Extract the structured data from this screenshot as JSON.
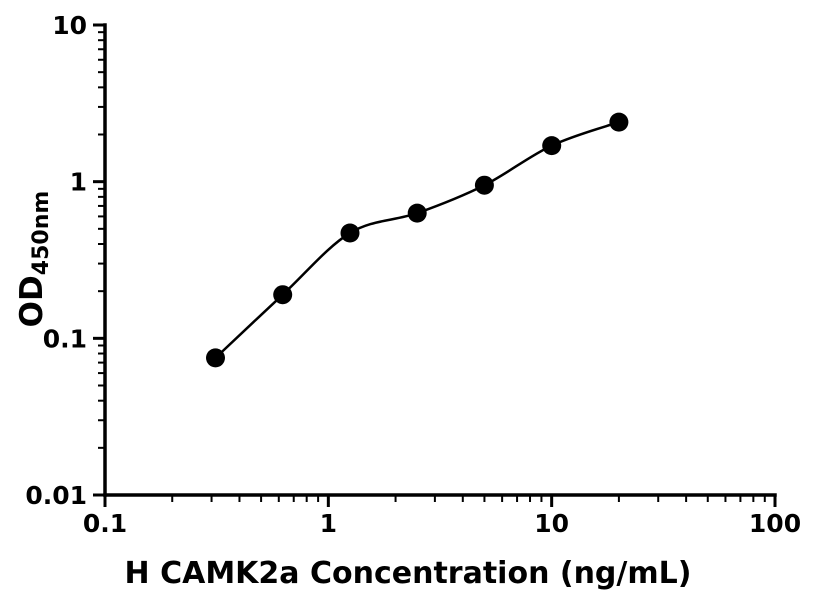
{
  "chart_data": {
    "type": "scatter",
    "title": "",
    "xlabel": "H CAMK2a Concentration (ng/mL)",
    "ylabel_main": "OD",
    "ylabel_sub": "450nm",
    "xscale": "log",
    "yscale": "log",
    "xlim": [
      0.1,
      100
    ],
    "ylim": [
      0.01,
      10
    ],
    "x": [
      0.3125,
      0.625,
      1.25,
      2.5,
      5,
      10,
      20
    ],
    "y": [
      0.075,
      0.19,
      0.47,
      0.63,
      0.95,
      1.7,
      2.4
    ],
    "curve": "smooth-fit-through-points",
    "x_major_ticks": [
      0.1,
      1,
      10,
      100
    ],
    "x_tick_labels": [
      "0.1",
      "1",
      "10",
      "100"
    ],
    "y_major_ticks": [
      0.01,
      0.1,
      1,
      10
    ],
    "y_tick_labels": [
      "0.01",
      "0.1",
      "1",
      "10"
    ],
    "grid": false,
    "legend": null,
    "marker": {
      "shape": "circle",
      "color": "#000000",
      "radius": 9.5
    },
    "line_color": "#000000",
    "axis_color": "#000000",
    "background": "#ffffff",
    "tick_label_font_px": 25
  }
}
